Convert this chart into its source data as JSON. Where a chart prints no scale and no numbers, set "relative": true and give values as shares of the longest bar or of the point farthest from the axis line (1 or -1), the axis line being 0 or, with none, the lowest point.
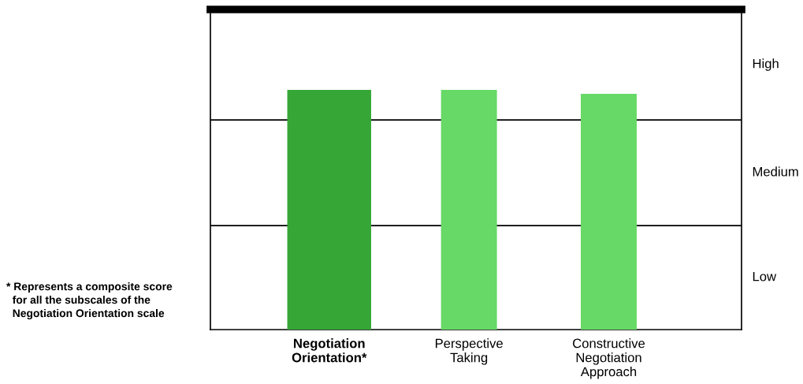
{
  "chart_data": {
    "type": "bar",
    "relative": true,
    "categories": [
      "Negotiation\nOrientation*",
      "Perspective\nTaking",
      "Constructive\nNegotiation\nApproach"
    ],
    "values": [
      1,
      1,
      0.984
    ],
    "colors": [
      "#36a736",
      "#66d966",
      "#66d966"
    ],
    "ylim": [
      0,
      1.336
    ],
    "ref_lines": [
      {
        "axis": "y",
        "value": 0.434,
        "color": "#000000"
      },
      {
        "axis": "y",
        "value": 0.875,
        "color": "#000000"
      }
    ],
    "annotations": [
      "High",
      "Medium",
      "Low",
      "* Represents a composite score\n  for all the subscales of the\n  Negotiation Orientation scale"
    ],
    "grid": false,
    "legend": false
  }
}
